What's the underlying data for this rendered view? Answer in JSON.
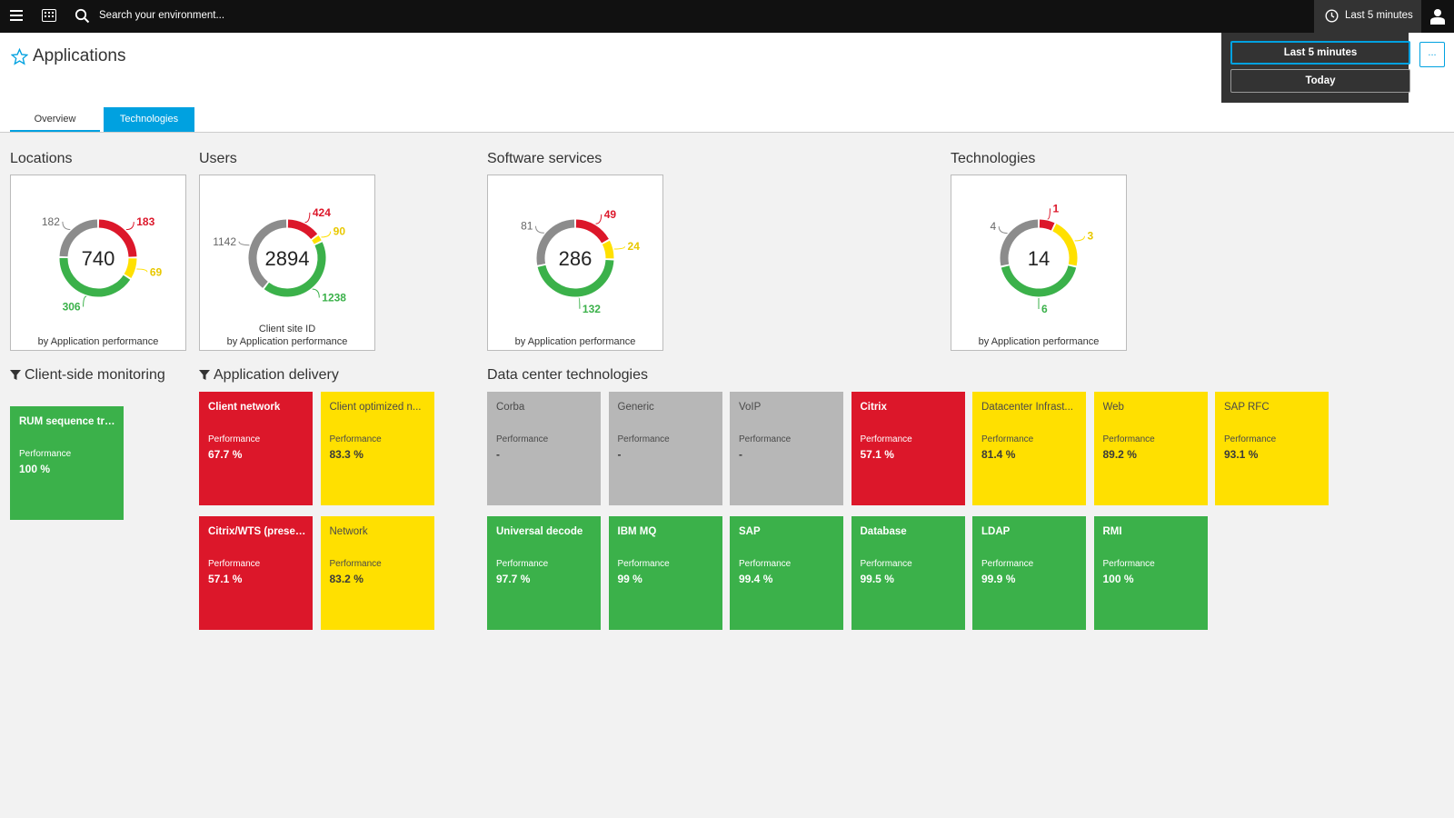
{
  "topbar": {
    "search_placeholder": "Search your environment...",
    "timeframe_label": "Last 5 minutes"
  },
  "timeframe_menu": {
    "options": [
      "Last 5 minutes",
      "Today"
    ],
    "more_label": "..."
  },
  "header": {
    "title": "Applications",
    "tabs": [
      "Overview",
      "Technologies"
    ],
    "active_tab": "Technologies"
  },
  "donuts": {
    "locations": {
      "title": "Locations",
      "total": "740",
      "gray": "182",
      "red": "183",
      "yellow": "69",
      "green": "306",
      "caption": "by Application performance"
    },
    "users": {
      "title": "Users",
      "total": "2894",
      "gray": "1142",
      "red": "424",
      "yellow": "90",
      "green": "1238",
      "caption1": "Client site ID",
      "caption": "by Application performance"
    },
    "software": {
      "title": "Software services",
      "total": "286",
      "gray": "81",
      "red": "49",
      "yellow": "24",
      "green": "132",
      "caption": "by Application performance"
    },
    "technologies": {
      "title": "Technologies",
      "total": "14",
      "gray": "4",
      "red": "1",
      "yellow": "3",
      "green": "6",
      "caption": "by Application performance"
    }
  },
  "colors": {
    "red": "#dc172a",
    "yellow": "#ffe000",
    "green": "#3bb14a",
    "gray": "#8c8c8c",
    "accent": "#00a1e0"
  },
  "client_side": {
    "title": "Client-side monitoring",
    "tiles": [
      {
        "name": "RUM sequence tra...",
        "label": "Performance",
        "value": "100 %",
        "status": "green"
      }
    ]
  },
  "app_delivery": {
    "title": "Application delivery",
    "tiles": [
      {
        "name": "Client network",
        "label": "Performance",
        "value": "67.7 %",
        "status": "red"
      },
      {
        "name": "Client optimized n...",
        "label": "Performance",
        "value": "83.3 %",
        "status": "yellow"
      },
      {
        "name": "Citrix/WTS (presen...",
        "label": "Performance",
        "value": "57.1 %",
        "status": "red"
      },
      {
        "name": "Network",
        "label": "Performance",
        "value": "83.2 %",
        "status": "yellow"
      }
    ]
  },
  "datacenter": {
    "title": "Data center technologies",
    "tiles": [
      {
        "name": "Corba",
        "label": "Performance",
        "value": "-",
        "status": "gray"
      },
      {
        "name": "Generic",
        "label": "Performance",
        "value": "-",
        "status": "gray"
      },
      {
        "name": "VoIP",
        "label": "Performance",
        "value": "-",
        "status": "gray"
      },
      {
        "name": "Citrix",
        "label": "Performance",
        "value": "57.1 %",
        "status": "red"
      },
      {
        "name": "Datacenter Infrast...",
        "label": "Performance",
        "value": "81.4 %",
        "status": "yellow"
      },
      {
        "name": "Web",
        "label": "Performance",
        "value": "89.2 %",
        "status": "yellow"
      },
      {
        "name": "SAP RFC",
        "label": "Performance",
        "value": "93.1 %",
        "status": "yellow"
      },
      {
        "name": "Universal decode",
        "label": "Performance",
        "value": "97.7 %",
        "status": "green"
      },
      {
        "name": "IBM MQ",
        "label": "Performance",
        "value": "99 %",
        "status": "green"
      },
      {
        "name": "SAP",
        "label": "Performance",
        "value": "99.4 %",
        "status": "green"
      },
      {
        "name": "Database",
        "label": "Performance",
        "value": "99.5 %",
        "status": "green"
      },
      {
        "name": "LDAP",
        "label": "Performance",
        "value": "99.9 %",
        "status": "green"
      },
      {
        "name": "RMI",
        "label": "Performance",
        "value": "100 %",
        "status": "green"
      }
    ]
  }
}
